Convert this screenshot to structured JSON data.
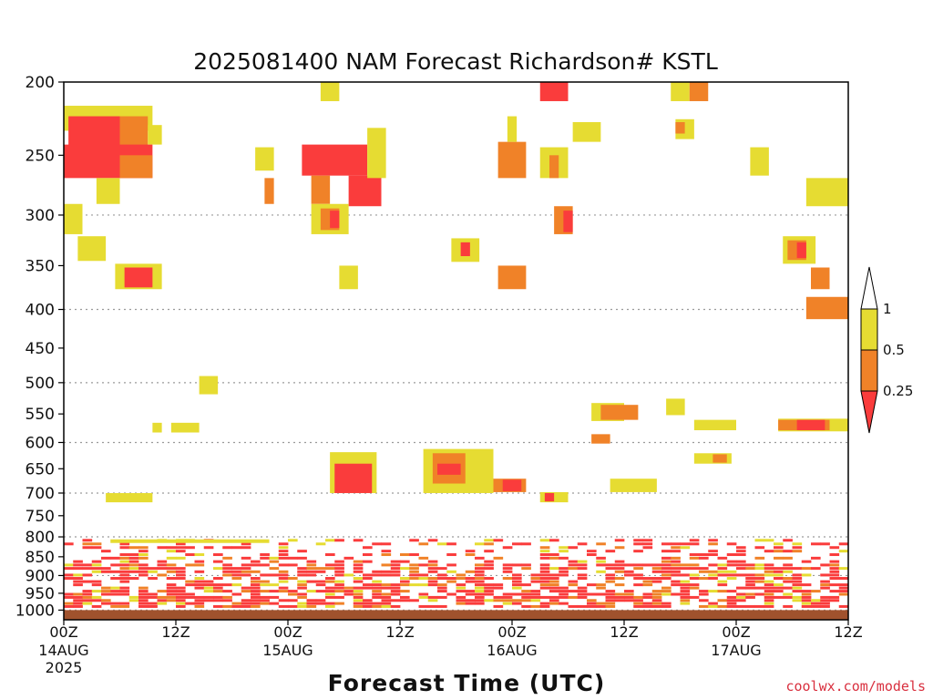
{
  "chart_data": {
    "type": "heatmap",
    "title": "2025081400 NAM Forecast Richardson# KSTL",
    "xlabel": "Forecast Time (UTC)",
    "ylabel": "",
    "y_scale": "log-pressure (hPa), inverted",
    "ylim": [
      1030,
      200
    ],
    "xlim_hours": [
      0,
      84
    ],
    "y_ticks": [
      200,
      250,
      300,
      350,
      400,
      450,
      500,
      550,
      600,
      650,
      700,
      750,
      800,
      850,
      900,
      950,
      1000
    ],
    "y_gridlines": [
      300,
      400,
      500,
      600,
      700,
      800,
      900,
      1000
    ],
    "x_ticks": [
      {
        "hour": 0,
        "label": "00Z",
        "date": "14AUG",
        "year": "2025"
      },
      {
        "hour": 12,
        "label": "12Z",
        "date": "",
        "year": ""
      },
      {
        "hour": 24,
        "label": "00Z",
        "date": "15AUG",
        "year": ""
      },
      {
        "hour": 36,
        "label": "12Z",
        "date": "",
        "year": ""
      },
      {
        "hour": 48,
        "label": "00Z",
        "date": "16AUG",
        "year": ""
      },
      {
        "hour": 60,
        "label": "12Z",
        "date": "",
        "year": ""
      },
      {
        "hour": 72,
        "label": "00Z",
        "date": "17AUG",
        "year": ""
      },
      {
        "hour": 84,
        "label": "12Z",
        "date": "",
        "year": ""
      }
    ],
    "legend": {
      "placement": "right",
      "labels": [
        "1",
        "0.5",
        "0.25"
      ],
      "bins": [
        {
          "range": "> 1",
          "color": "#ffffff"
        },
        {
          "range": "0.5 - 1",
          "color": "#e6dc32"
        },
        {
          "range": "0.25 - 0.5",
          "color": "#f08228"
        },
        {
          "range": "< 0.25",
          "color": "#fa3c3c"
        }
      ]
    },
    "colors": {
      "low": "#fa3c3c",
      "mid": "#f08228",
      "high": "#e6dc32",
      "ground": "#a0522d",
      "grid": "#9a9a9a"
    },
    "cells": [
      {
        "hours": [
          0,
          9.5
        ],
        "p": [
          215,
          232
        ],
        "c": "high"
      },
      {
        "hours": [
          0.5,
          6
        ],
        "p": [
          222,
          260
        ],
        "c": "low"
      },
      {
        "hours": [
          6,
          9
        ],
        "p": [
          222,
          262
        ],
        "c": "mid"
      },
      {
        "hours": [
          9,
          10.5
        ],
        "p": [
          228,
          242
        ],
        "c": "high"
      },
      {
        "hours": [
          0,
          9.5
        ],
        "p": [
          242,
          268
        ],
        "c": "low"
      },
      {
        "hours": [
          6,
          9.5
        ],
        "p": [
          250,
          268
        ],
        "c": "mid"
      },
      {
        "hours": [
          3.5,
          6
        ],
        "p": [
          268,
          290
        ],
        "c": "high"
      },
      {
        "hours": [
          0,
          2
        ],
        "p": [
          290,
          318
        ],
        "c": "high"
      },
      {
        "hours": [
          1.5,
          4.5
        ],
        "p": [
          320,
          345
        ],
        "c": "high"
      },
      {
        "hours": [
          5.5,
          10.5
        ],
        "p": [
          348,
          376
        ],
        "c": "high"
      },
      {
        "hours": [
          6.5,
          9.5
        ],
        "p": [
          352,
          374
        ],
        "c": "low"
      },
      {
        "hours": [
          20.5,
          22.5
        ],
        "p": [
          244,
          262
        ],
        "c": "high"
      },
      {
        "hours": [
          21.5,
          22.5
        ],
        "p": [
          268,
          290
        ],
        "c": "mid"
      },
      {
        "hours": [
          25.5,
          32.5
        ],
        "p": [
          242,
          266
        ],
        "c": "low"
      },
      {
        "hours": [
          26.5,
          28.5
        ],
        "p": [
          266,
          290
        ],
        "c": "mid"
      },
      {
        "hours": [
          30.5,
          34
        ],
        "p": [
          266,
          292
        ],
        "c": "low"
      },
      {
        "hours": [
          32.5,
          34.5
        ],
        "p": [
          230,
          268
        ],
        "c": "high"
      },
      {
        "hours": [
          26.5,
          30.5
        ],
        "p": [
          290,
          318
        ],
        "c": "high"
      },
      {
        "hours": [
          27.5,
          29.5
        ],
        "p": [
          294,
          314
        ],
        "c": "mid"
      },
      {
        "hours": [
          28.5,
          29.5
        ],
        "p": [
          296,
          312
        ],
        "c": "low"
      },
      {
        "hours": [
          29.5,
          31.5
        ],
        "p": [
          350,
          376
        ],
        "c": "high"
      },
      {
        "hours": [
          27.5,
          29.5
        ],
        "p": [
          200,
          212
        ],
        "c": "high"
      },
      {
        "hours": [
          41.5,
          44.5
        ],
        "p": [
          322,
          346
        ],
        "c": "high"
      },
      {
        "hours": [
          42.5,
          43.5
        ],
        "p": [
          326,
          340
        ],
        "c": "low"
      },
      {
        "hours": [
          46.5,
          49.5
        ],
        "p": [
          240,
          268
        ],
        "c": "mid"
      },
      {
        "hours": [
          47.5,
          48.5
        ],
        "p": [
          222,
          240
        ],
        "c": "high"
      },
      {
        "hours": [
          46.5,
          49.5
        ],
        "p": [
          350,
          376
        ],
        "c": "mid"
      },
      {
        "hours": [
          51,
          54
        ],
        "p": [
          244,
          268
        ],
        "c": "high"
      },
      {
        "hours": [
          52,
          53
        ],
        "p": [
          250,
          268
        ],
        "c": "mid"
      },
      {
        "hours": [
          51,
          54
        ],
        "p": [
          200,
          212
        ],
        "c": "low"
      },
      {
        "hours": [
          52.5,
          54.5
        ],
        "p": [
          292,
          318
        ],
        "c": "mid"
      },
      {
        "hours": [
          53.5,
          54.5
        ],
        "p": [
          296,
          316
        ],
        "c": "low"
      },
      {
        "hours": [
          54.5,
          57.5
        ],
        "p": [
          226,
          240
        ],
        "c": "high"
      },
      {
        "hours": [
          65,
          67
        ],
        "p": [
          200,
          212
        ],
        "c": "high"
      },
      {
        "hours": [
          67,
          69
        ],
        "p": [
          200,
          212
        ],
        "c": "mid"
      },
      {
        "hours": [
          65.5,
          67.5
        ],
        "p": [
          224,
          238
        ],
        "c": "high"
      },
      {
        "hours": [
          65.5,
          66.5
        ],
        "p": [
          226,
          234
        ],
        "c": "mid"
      },
      {
        "hours": [
          73.5,
          75.5
        ],
        "p": [
          244,
          266
        ],
        "c": "high"
      },
      {
        "hours": [
          79.5,
          84
        ],
        "p": [
          268,
          292
        ],
        "c": "high"
      },
      {
        "hours": [
          77,
          80.5
        ],
        "p": [
          320,
          348
        ],
        "c": "high"
      },
      {
        "hours": [
          77.5,
          79.5
        ],
        "p": [
          324,
          344
        ],
        "c": "mid"
      },
      {
        "hours": [
          78.5,
          79.5
        ],
        "p": [
          326,
          342
        ],
        "c": "low"
      },
      {
        "hours": [
          80,
          82
        ],
        "p": [
          352,
          376
        ],
        "c": "mid"
      },
      {
        "hours": [
          79.5,
          84
        ],
        "p": [
          385,
          412
        ],
        "c": "mid"
      },
      {
        "hours": [
          14.5,
          16.5
        ],
        "p": [
          490,
          518
        ],
        "c": "high"
      },
      {
        "hours": [
          11.5,
          14.5
        ],
        "p": [
          565,
          582
        ],
        "c": "high"
      },
      {
        "hours": [
          9.5,
          10.5
        ],
        "p": [
          565,
          582
        ],
        "c": "high"
      },
      {
        "hours": [
          56.5,
          60
        ],
        "p": [
          532,
          562
        ],
        "c": "high"
      },
      {
        "hours": [
          57.5,
          61.5
        ],
        "p": [
          535,
          560
        ],
        "c": "mid"
      },
      {
        "hours": [
          56.5,
          58.5
        ],
        "p": [
          585,
          602
        ],
        "c": "mid"
      },
      {
        "hours": [
          64.5,
          66.5
        ],
        "p": [
          525,
          552
        ],
        "c": "high"
      },
      {
        "hours": [
          67.5,
          72
        ],
        "p": [
          560,
          578
        ],
        "c": "high"
      },
      {
        "hours": [
          76.5,
          84
        ],
        "p": [
          558,
          580
        ],
        "c": "high"
      },
      {
        "hours": [
          76.5,
          82
        ],
        "p": [
          560,
          578
        ],
        "c": "mid"
      },
      {
        "hours": [
          78.5,
          81.5
        ],
        "p": [
          560,
          578
        ],
        "c": "low"
      },
      {
        "hours": [
          67.5,
          71.5
        ],
        "p": [
          620,
          640
        ],
        "c": "high"
      },
      {
        "hours": [
          69.5,
          71
        ],
        "p": [
          622,
          638
        ],
        "c": "mid"
      },
      {
        "hours": [
          28.5,
          33.5
        ],
        "p": [
          618,
          700
        ],
        "c": "high"
      },
      {
        "hours": [
          29,
          33
        ],
        "p": [
          640,
          700
        ],
        "c": "low"
      },
      {
        "hours": [
          38.5,
          46
        ],
        "p": [
          612,
          700
        ],
        "c": "high"
      },
      {
        "hours": [
          39.5,
          43
        ],
        "p": [
          620,
          680
        ],
        "c": "mid"
      },
      {
        "hours": [
          40,
          42.5
        ],
        "p": [
          640,
          662
        ],
        "c": "low"
      },
      {
        "hours": [
          46,
          49.5
        ],
        "p": [
          670,
          698
        ],
        "c": "mid"
      },
      {
        "hours": [
          47,
          49
        ],
        "p": [
          672,
          696
        ],
        "c": "low"
      },
      {
        "hours": [
          51,
          54
        ],
        "p": [
          698,
          720
        ],
        "c": "high"
      },
      {
        "hours": [
          51.5,
          52.5
        ],
        "p": [
          700,
          718
        ],
        "c": "low"
      },
      {
        "hours": [
          58.5,
          63.5
        ],
        "p": [
          670,
          698
        ],
        "c": "high"
      },
      {
        "hours": [
          4.5,
          9.5
        ],
        "p": [
          700,
          720
        ],
        "c": "high"
      }
    ],
    "boundary_layer": {
      "hours": [
        0,
        84
      ],
      "p_top": 790,
      "p_ground": 1000,
      "note": "Striped mix of low/mid/high Richardson values between roughly 800 and 1000 hPa"
    }
  },
  "credit": "coolwx.com/models"
}
